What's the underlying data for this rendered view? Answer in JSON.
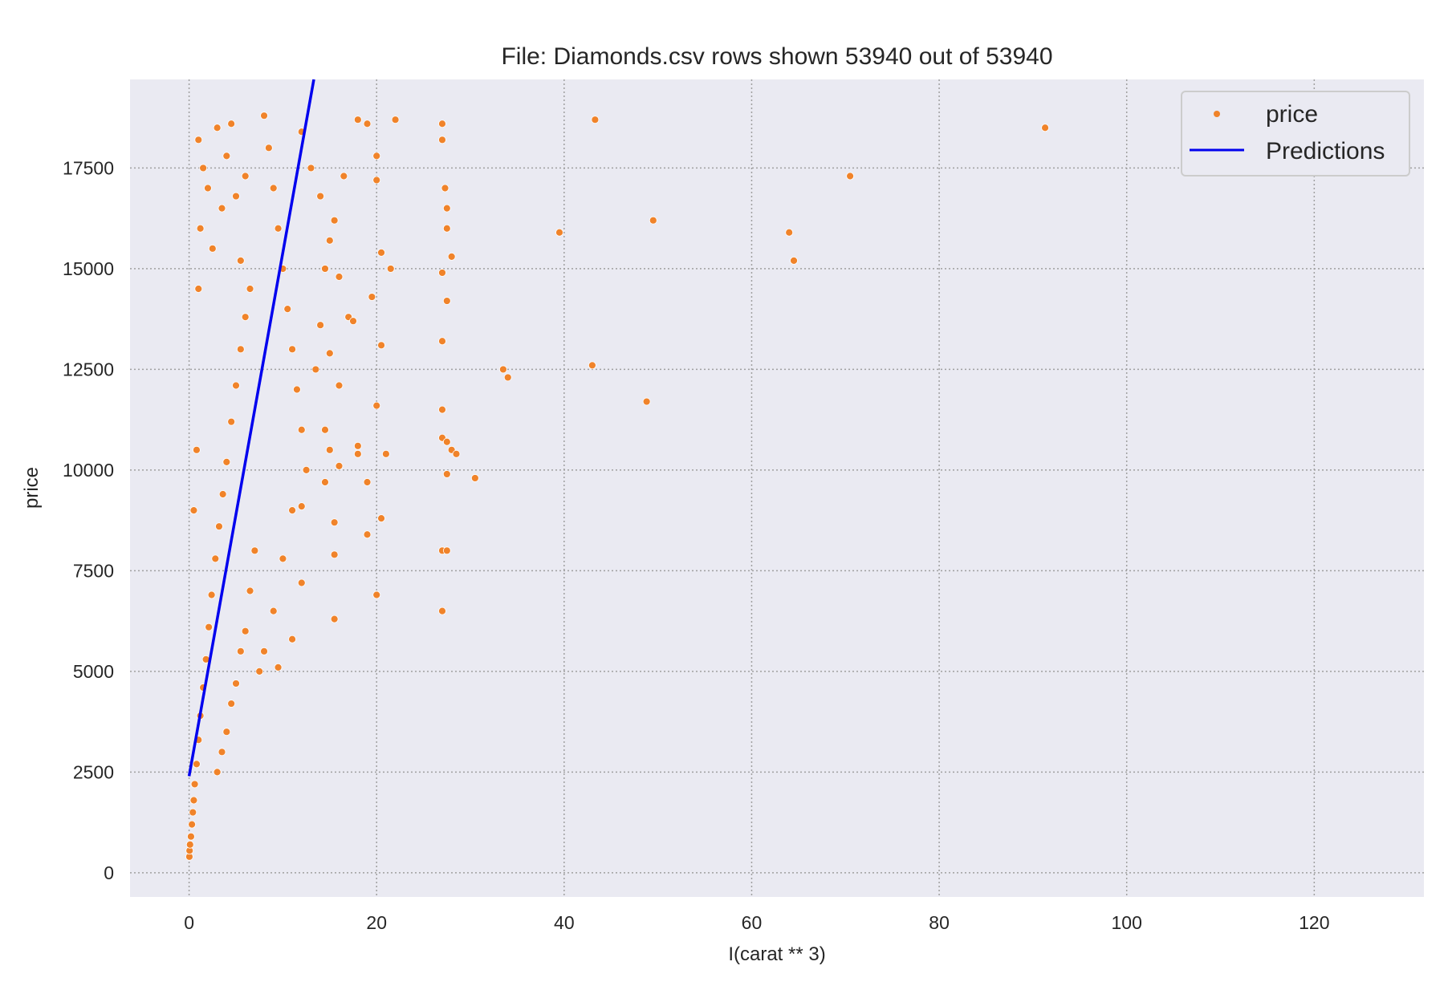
{
  "chart_data": {
    "type": "scatter",
    "title": "File: Diamonds.csv rows shown 53940 out of 53940",
    "xlabel": "I(carat ** 3)",
    "ylabel": "price",
    "xlim": [
      -6.3,
      131.7
    ],
    "ylim": [
      -600,
      19700
    ],
    "xticks": [
      0,
      20,
      40,
      60,
      80,
      100,
      120
    ],
    "yticks": [
      0,
      2500,
      5000,
      7500,
      10000,
      12500,
      15000,
      17500
    ],
    "grid": true,
    "legend_position": "top-right",
    "colors": {
      "points": "#f0832a",
      "line": "#0000ee",
      "background": "#eaeaf2",
      "grid": "#a0a0a0"
    },
    "series": [
      {
        "name": "price",
        "kind": "scatter",
        "points": [
          [
            0.03,
            400
          ],
          [
            0.05,
            550
          ],
          [
            0.1,
            700
          ],
          [
            0.2,
            900
          ],
          [
            0.3,
            1200
          ],
          [
            0.4,
            1500
          ],
          [
            0.5,
            1800
          ],
          [
            0.6,
            2200
          ],
          [
            0.8,
            2700
          ],
          [
            1.0,
            3300
          ],
          [
            1.2,
            3900
          ],
          [
            1.5,
            4600
          ],
          [
            1.8,
            5300
          ],
          [
            2.1,
            6100
          ],
          [
            2.4,
            6900
          ],
          [
            2.8,
            7800
          ],
          [
            3.2,
            8600
          ],
          [
            3.6,
            9400
          ],
          [
            4.0,
            10200
          ],
          [
            4.5,
            11200
          ],
          [
            5.0,
            12100
          ],
          [
            5.5,
            13000
          ],
          [
            6.0,
            13800
          ],
          [
            0.5,
            9000
          ],
          [
            0.8,
            10500
          ],
          [
            1.0,
            14500
          ],
          [
            1.2,
            16000
          ],
          [
            1.0,
            18200
          ],
          [
            1.5,
            17500
          ],
          [
            2.0,
            17000
          ],
          [
            2.5,
            15500
          ],
          [
            3.0,
            18500
          ],
          [
            3.5,
            16500
          ],
          [
            4.0,
            17800
          ],
          [
            4.5,
            18600
          ],
          [
            5.0,
            16800
          ],
          [
            5.5,
            15200
          ],
          [
            6.0,
            17300
          ],
          [
            6.5,
            14500
          ],
          [
            3.0,
            2500
          ],
          [
            3.5,
            3000
          ],
          [
            4.0,
            3500
          ],
          [
            4.5,
            4200
          ],
          [
            5.0,
            4700
          ],
          [
            5.5,
            5500
          ],
          [
            6.0,
            6000
          ],
          [
            6.5,
            7000
          ],
          [
            7.0,
            8000
          ],
          [
            7.5,
            5000
          ],
          [
            8.0,
            5500
          ],
          [
            8.0,
            18800
          ],
          [
            8.5,
            18000
          ],
          [
            9.0,
            17000
          ],
          [
            9.5,
            16000
          ],
          [
            10.0,
            15000
          ],
          [
            10.5,
            14000
          ],
          [
            11.0,
            13000
          ],
          [
            11.5,
            12000
          ],
          [
            12.0,
            11000
          ],
          [
            12.5,
            10000
          ],
          [
            11.0,
            9000
          ],
          [
            12.0,
            9100
          ],
          [
            10.0,
            7800
          ],
          [
            12.0,
            7200
          ],
          [
            9.0,
            6500
          ],
          [
            11.0,
            5800
          ],
          [
            9.5,
            5100
          ],
          [
            12.0,
            18400
          ],
          [
            13.0,
            17500
          ],
          [
            14.0,
            16800
          ],
          [
            15.0,
            15700
          ],
          [
            16.0,
            14800
          ],
          [
            17.0,
            13800
          ],
          [
            18.0,
            18700
          ],
          [
            19.0,
            18600
          ],
          [
            16.5,
            17300
          ],
          [
            15.5,
            16200
          ],
          [
            14.5,
            15000
          ],
          [
            13.5,
            12500
          ],
          [
            14.0,
            13600
          ],
          [
            15.0,
            12900
          ],
          [
            16.0,
            12100
          ],
          [
            17.5,
            13700
          ],
          [
            14.5,
            11000
          ],
          [
            15.0,
            10500
          ],
          [
            16.0,
            10100
          ],
          [
            14.5,
            9700
          ],
          [
            15.5,
            8700
          ],
          [
            15.5,
            7900
          ],
          [
            15.5,
            6300
          ],
          [
            18.0,
            10600
          ],
          [
            18.0,
            10400
          ],
          [
            19.0,
            9700
          ],
          [
            19.0,
            8400
          ],
          [
            19.5,
            14300
          ],
          [
            20.0,
            11600
          ],
          [
            20.0,
            17800
          ],
          [
            20.0,
            17200
          ],
          [
            20.0,
            6900
          ],
          [
            20.5,
            8800
          ],
          [
            20.5,
            15400
          ],
          [
            20.5,
            13100
          ],
          [
            21.0,
            10400
          ],
          [
            21.5,
            15000
          ],
          [
            22.0,
            18700
          ],
          [
            27.0,
            18600
          ],
          [
            27.0,
            18200
          ],
          [
            27.3,
            17000
          ],
          [
            27.5,
            16500
          ],
          [
            27.5,
            16000
          ],
          [
            27.0,
            14900
          ],
          [
            27.5,
            14200
          ],
          [
            28.0,
            15300
          ],
          [
            27.0,
            13200
          ],
          [
            27.0,
            11500
          ],
          [
            27.0,
            10800
          ],
          [
            27.5,
            10700
          ],
          [
            28.0,
            10500
          ],
          [
            28.5,
            10400
          ],
          [
            27.5,
            9900
          ],
          [
            30.5,
            9800
          ],
          [
            27.0,
            8000
          ],
          [
            27.5,
            8000
          ],
          [
            27.0,
            6500
          ],
          [
            33.5,
            12500
          ],
          [
            34.0,
            12300
          ],
          [
            39.5,
            15900
          ],
          [
            43.0,
            12600
          ],
          [
            43.3,
            18700
          ],
          [
            48.8,
            11700
          ],
          [
            49.5,
            16200
          ],
          [
            64.0,
            15900
          ],
          [
            64.5,
            15200
          ],
          [
            70.5,
            17300
          ],
          [
            91.3,
            18500
          ]
        ]
      },
      {
        "name": "Predictions",
        "kind": "line",
        "points": [
          [
            0,
            2400
          ],
          [
            13.3,
            19700
          ]
        ]
      }
    ]
  }
}
